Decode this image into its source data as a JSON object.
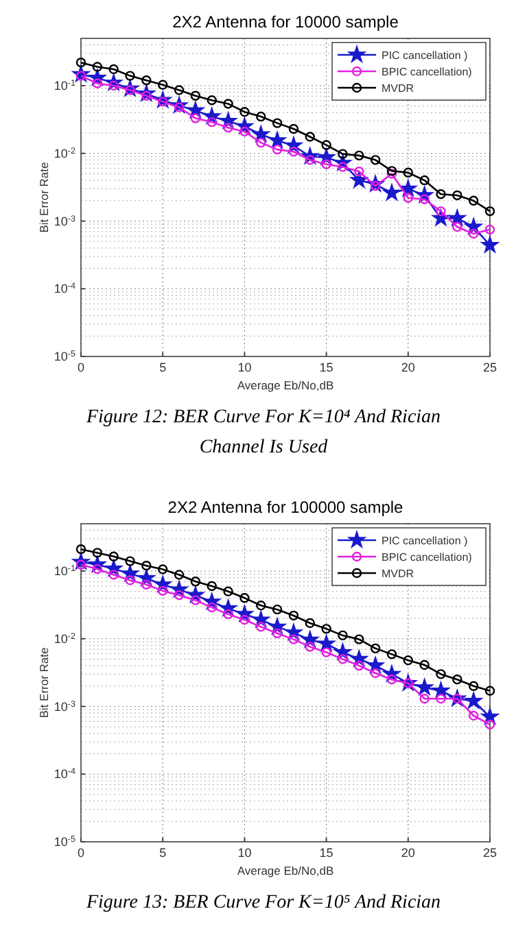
{
  "chart_data": [
    {
      "type": "line",
      "title": "2X2 Antenna for 10000 sample",
      "xlabel": "Average Eb/No,dB",
      "ylabel": "Bit Error Rate",
      "annotations": [
        "Figure 12: BER Curve For K=10⁴ And Rician Channel Is Used"
      ],
      "x": [
        0,
        1,
        2,
        3,
        4,
        5,
        6,
        7,
        8,
        9,
        10,
        11,
        12,
        13,
        14,
        15,
        16,
        17,
        18,
        19,
        20,
        21,
        22,
        23,
        24,
        25
      ],
      "series": [
        {
          "name": "PIC cancellation )",
          "color": "#1a1acc",
          "marker": "star",
          "values": [
            0.147,
            0.13,
            0.11,
            0.09,
            0.076,
            0.061,
            0.051,
            0.043,
            0.035,
            0.03,
            0.025,
            0.019,
            0.0155,
            0.013,
            0.009,
            0.0087,
            0.0072,
            0.004,
            0.0035,
            0.0026,
            0.003,
            0.0024,
            0.0011,
            0.0011,
            0.00082,
            0.00044
          ]
        },
        {
          "name": "BPIC cancellation)",
          "color": "#e020e0",
          "marker": "circle",
          "values": [
            0.14,
            0.108,
            0.1,
            0.086,
            0.071,
            0.058,
            0.048,
            0.033,
            0.029,
            0.024,
            0.021,
            0.0144,
            0.0114,
            0.0106,
            0.008,
            0.0069,
            0.0063,
            0.0054,
            0.0033,
            0.005,
            0.0022,
            0.0021,
            0.0014,
            0.00082,
            0.00065,
            0.00075
          ]
        },
        {
          "name": "MVDR",
          "color": "#000000",
          "marker": "circle",
          "values": [
            0.22,
            0.19,
            0.175,
            0.14,
            0.12,
            0.103,
            0.086,
            0.071,
            0.061,
            0.054,
            0.041,
            0.035,
            0.028,
            0.023,
            0.0176,
            0.0133,
            0.0098,
            0.0093,
            0.008,
            0.0055,
            0.0052,
            0.004,
            0.0025,
            0.0024,
            0.002,
            0.0014
          ]
        }
      ],
      "xlim": [
        0,
        25
      ],
      "xticks": [
        0,
        5,
        10,
        15,
        20,
        25
      ],
      "ylim": [
        1e-05,
        0.5
      ],
      "yticks": [
        {
          "value": 1e-05,
          "label": "10$^{-5}$"
        },
        {
          "value": 0.0001,
          "label": "10$^{-4}$"
        },
        {
          "value": 0.001,
          "label": "10$^{-3}$"
        },
        {
          "value": 0.01,
          "label": "10$^{-2}$"
        },
        {
          "value": 0.1,
          "label": "10$^{-1}$"
        }
      ],
      "log": true,
      "grid": true,
      "legend": "top right"
    },
    {
      "type": "line",
      "title": "2X2 Antenna for 100000 sample",
      "xlabel": "Average Eb/No,dB",
      "ylabel": "Bit Error Rate",
      "annotations": [
        "Figure 13: BER Curve For K=10⁵ And Rician"
      ],
      "x": [
        0,
        1,
        2,
        3,
        4,
        5,
        6,
        7,
        8,
        9,
        10,
        11,
        12,
        13,
        14,
        15,
        16,
        17,
        18,
        19,
        20,
        21,
        22,
        23,
        24,
        25
      ],
      "series": [
        {
          "name": "PIC cancellation )",
          "color": "#1a1acc",
          "marker": "star",
          "values": [
            0.136,
            0.124,
            0.108,
            0.091,
            0.078,
            0.063,
            0.053,
            0.044,
            0.035,
            0.028,
            0.023,
            0.019,
            0.015,
            0.0123,
            0.0096,
            0.0084,
            0.0063,
            0.005,
            0.004,
            0.003,
            0.0022,
            0.0019,
            0.0017,
            0.0013,
            0.0012,
            0.0007
          ]
        },
        {
          "name": "BPIC cancellation)",
          "color": "#e020e0",
          "marker": "circle",
          "values": [
            0.124,
            0.107,
            0.088,
            0.073,
            0.063,
            0.051,
            0.044,
            0.037,
            0.029,
            0.023,
            0.019,
            0.015,
            0.012,
            0.0098,
            0.0076,
            0.0063,
            0.005,
            0.004,
            0.0031,
            0.0025,
            0.0022,
            0.0013,
            0.0013,
            0.0013,
            0.00073,
            0.00054
          ]
        },
        {
          "name": "MVDR",
          "color": "#000000",
          "marker": "circle",
          "values": [
            0.21,
            0.186,
            0.164,
            0.14,
            0.12,
            0.106,
            0.088,
            0.07,
            0.06,
            0.05,
            0.04,
            0.031,
            0.027,
            0.022,
            0.017,
            0.014,
            0.0112,
            0.0098,
            0.0072,
            0.0059,
            0.0048,
            0.0041,
            0.003,
            0.0025,
            0.002,
            0.0017
          ]
        }
      ],
      "xlim": [
        0,
        25
      ],
      "xticks": [
        0,
        5,
        10,
        15,
        20,
        25
      ],
      "ylim": [
        1e-05,
        0.5
      ],
      "yticks": [
        {
          "value": 1e-05,
          "label": "10$^{-5}$"
        },
        {
          "value": 0.0001,
          "label": "10$^{-4}$"
        },
        {
          "value": 0.001,
          "label": "10$^{-3}$"
        },
        {
          "value": 0.01,
          "label": "10$^{-2}$"
        },
        {
          "value": 0.1,
          "label": "10$^{-1}$"
        }
      ],
      "log": true,
      "grid": true,
      "legend": "top right"
    }
  ]
}
